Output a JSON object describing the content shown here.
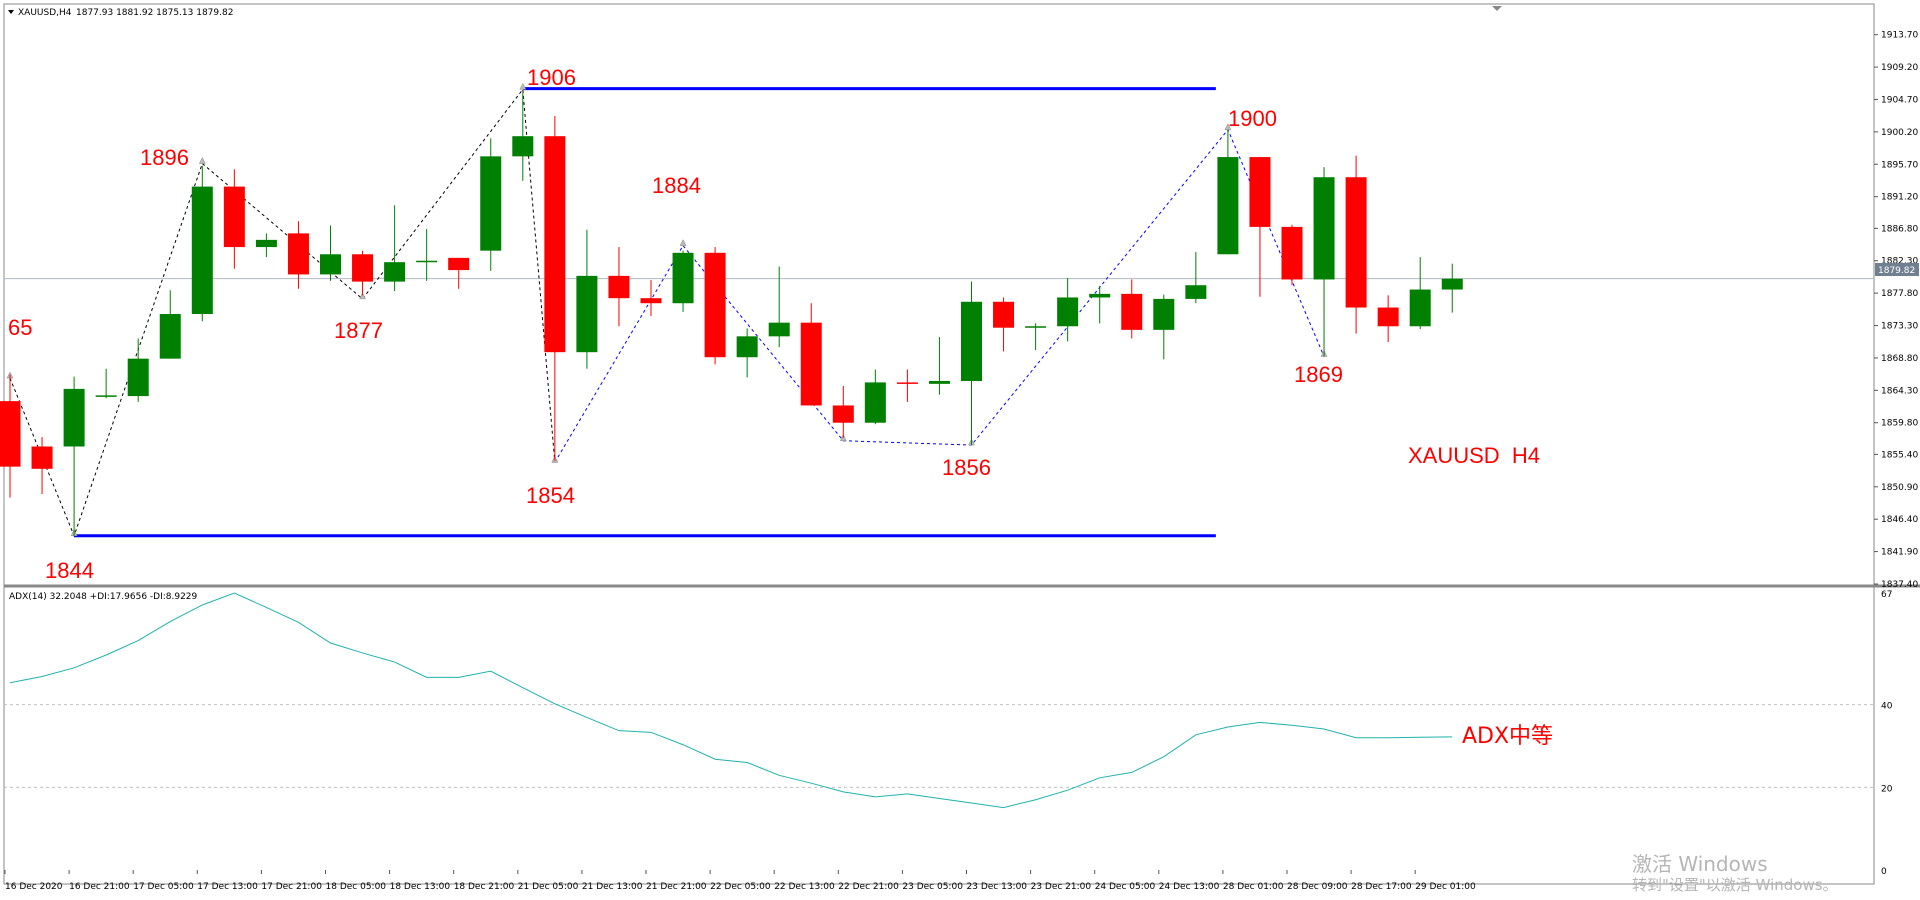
{
  "header": {
    "title": "XAUUSD,H4",
    "ohlc": "1877.93 1881.92 1875.13 1879.82"
  },
  "indicator": {
    "label": "ADX(14) 32.2048 +DI:17.9656 -DI:8.9229",
    "comment": "ADX中等",
    "axis_labels": [
      "67",
      "40",
      "20",
      "0"
    ]
  },
  "annotations": {
    "symbol_label": "XAUUSD  H4",
    "current_price": "1879.82"
  },
  "watermark": {
    "line1": "激活 Windows",
    "line2": "转到\"设置\"以激活 Windows。"
  },
  "colors": {
    "bull": "#008000",
    "bear": "#ff0000",
    "level_line": "#0000ff",
    "zigzag_red": "#000000",
    "zigzag_blue": "#0000ff",
    "adx_line": "#20b2aa",
    "price_label_text": "#ff0000"
  },
  "chart_data": {
    "type": "candlestick",
    "symbol": "XAUUSD",
    "timeframe": "H4",
    "price_range": [
      1837.4,
      1915.6
    ],
    "price_ticks": [
      "1913.70",
      "1909.20",
      "1904.70",
      "1900.20",
      "1895.70",
      "1891.20",
      "1886.80",
      "1882.30",
      "1877.80",
      "1873.30",
      "1868.80",
      "1864.30",
      "1859.80",
      "1855.40",
      "1850.90",
      "1846.40",
      "1841.90",
      "1837.40"
    ],
    "time_labels": [
      "16 Dec 2020",
      "16 Dec 21:00",
      "17 Dec 05:00",
      "17 Dec 13:00",
      "17 Dec 21:00",
      "18 Dec 05:00",
      "18 Dec 13:00",
      "18 Dec 21:00",
      "21 Dec 05:00",
      "21 Dec 13:00",
      "21 Dec 21:00",
      "22 Dec 05:00",
      "22 Dec 13:00",
      "22 Dec 21:00",
      "23 Dec 05:00",
      "23 Dec 13:00",
      "23 Dec 21:00",
      "24 Dec 05:00",
      "24 Dec 13:00",
      "28 Dec 01:00",
      "28 Dec 09:00",
      "28 Dec 17:00",
      "29 Dec 01:00"
    ],
    "candles": [
      {
        "o": 1862.8,
        "h": 1866.5,
        "l": 1849.4,
        "c": 1853.7
      },
      {
        "o": 1856.5,
        "h": 1857.8,
        "l": 1849.9,
        "c": 1853.4
      },
      {
        "o": 1856.5,
        "h": 1866.2,
        "l": 1844.1,
        "c": 1864.5
      },
      {
        "o": 1863.5,
        "h": 1867.3,
        "l": 1863.2,
        "c": 1863.6
      },
      {
        "o": 1863.5,
        "h": 1871.5,
        "l": 1862.7,
        "c": 1868.7
      },
      {
        "o": 1868.7,
        "h": 1878.2,
        "l": 1868.7,
        "c": 1874.9
      },
      {
        "o": 1874.9,
        "h": 1895.5,
        "l": 1873.9,
        "c": 1892.6
      },
      {
        "o": 1892.6,
        "h": 1895.0,
        "l": 1881.2,
        "c": 1884.2
      },
      {
        "o": 1884.2,
        "h": 1886.1,
        "l": 1882.8,
        "c": 1885.2
      },
      {
        "o": 1886.1,
        "h": 1887.8,
        "l": 1878.4,
        "c": 1880.4
      },
      {
        "o": 1880.4,
        "h": 1887.2,
        "l": 1879.5,
        "c": 1883.2
      },
      {
        "o": 1883.2,
        "h": 1883.7,
        "l": 1877.5,
        "c": 1879.4
      },
      {
        "o": 1879.4,
        "h": 1890.0,
        "l": 1878.1,
        "c": 1882.1
      },
      {
        "o": 1882.1,
        "h": 1886.7,
        "l": 1879.5,
        "c": 1882.3
      },
      {
        "o": 1882.7,
        "h": 1882.7,
        "l": 1878.4,
        "c": 1881.0
      },
      {
        "o": 1883.7,
        "h": 1899.3,
        "l": 1880.9,
        "c": 1896.8
      },
      {
        "o": 1896.8,
        "h": 1905.6,
        "l": 1893.4,
        "c": 1899.6
      },
      {
        "o": 1899.6,
        "h": 1902.4,
        "l": 1854.5,
        "c": 1869.6
      },
      {
        "o": 1869.6,
        "h": 1886.6,
        "l": 1867.3,
        "c": 1880.2
      },
      {
        "o": 1880.2,
        "h": 1884.2,
        "l": 1873.2,
        "c": 1877.1
      },
      {
        "o": 1877.1,
        "h": 1879.6,
        "l": 1874.6,
        "c": 1876.4
      },
      {
        "o": 1876.4,
        "h": 1883.7,
        "l": 1875.2,
        "c": 1883.4
      },
      {
        "o": 1883.4,
        "h": 1884.2,
        "l": 1867.9,
        "c": 1868.9
      },
      {
        "o": 1868.9,
        "h": 1872.9,
        "l": 1866.1,
        "c": 1871.8
      },
      {
        "o": 1871.8,
        "h": 1881.5,
        "l": 1870.3,
        "c": 1873.7
      },
      {
        "o": 1873.7,
        "h": 1876.4,
        "l": 1862.2,
        "c": 1862.2
      },
      {
        "o": 1862.2,
        "h": 1864.9,
        "l": 1857.7,
        "c": 1859.8
      },
      {
        "o": 1859.8,
        "h": 1867.2,
        "l": 1859.6,
        "c": 1865.4
      },
      {
        "o": 1865.4,
        "h": 1867.2,
        "l": 1862.7,
        "c": 1865.2
      },
      {
        "o": 1865.2,
        "h": 1871.7,
        "l": 1863.7,
        "c": 1865.6
      },
      {
        "o": 1865.6,
        "h": 1879.4,
        "l": 1856.7,
        "c": 1876.6
      },
      {
        "o": 1876.6,
        "h": 1877.2,
        "l": 1869.7,
        "c": 1873.0
      },
      {
        "o": 1873.0,
        "h": 1873.6,
        "l": 1869.9,
        "c": 1873.2
      },
      {
        "o": 1873.2,
        "h": 1879.9,
        "l": 1871.1,
        "c": 1877.2
      },
      {
        "o": 1877.2,
        "h": 1878.8,
        "l": 1873.6,
        "c": 1877.7
      },
      {
        "o": 1877.7,
        "h": 1879.7,
        "l": 1871.5,
        "c": 1872.7
      },
      {
        "o": 1872.7,
        "h": 1877.6,
        "l": 1868.6,
        "c": 1877.0
      },
      {
        "o": 1877.0,
        "h": 1883.5,
        "l": 1876.4,
        "c": 1878.9
      },
      {
        "o": 1883.2,
        "h": 1900.4,
        "l": 1883.2,
        "c": 1896.7
      },
      {
        "o": 1896.7,
        "h": 1896.7,
        "l": 1877.3,
        "c": 1887.0
      },
      {
        "o": 1887.0,
        "h": 1887.3,
        "l": 1878.9,
        "c": 1879.7
      },
      {
        "o": 1879.7,
        "h": 1895.3,
        "l": 1869.0,
        "c": 1893.9
      },
      {
        "o": 1893.9,
        "h": 1896.9,
        "l": 1872.2,
        "c": 1875.8
      },
      {
        "o": 1875.8,
        "h": 1877.5,
        "l": 1871.0,
        "c": 1873.2
      },
      {
        "o": 1873.2,
        "h": 1882.8,
        "l": 1872.8,
        "c": 1878.3
      },
      {
        "o": 1878.3,
        "h": 1881.9,
        "l": 1875.1,
        "c": 1879.8
      }
    ],
    "levels": [
      {
        "price": 1906.2,
        "from_candle": 16,
        "to_candle": 37
      },
      {
        "price": 1844.1,
        "from_candle": 2,
        "to_candle": 37
      }
    ],
    "zigzag": [
      {
        "style": "black",
        "points": [
          [
            0,
            1866.0
          ],
          [
            2,
            1844.1
          ],
          [
            6,
            1895.8
          ],
          [
            11,
            1877.0
          ],
          [
            16,
            1906.1
          ],
          [
            17,
            1854.3
          ]
        ]
      },
      {
        "style": "blue",
        "points": [
          [
            17,
            1854.3
          ],
          [
            21,
            1884.4
          ],
          [
            26,
            1857.3
          ],
          [
            30,
            1856.7
          ],
          [
            38,
            1900.5
          ],
          [
            41,
            1869.0
          ]
        ]
      }
    ],
    "price_labels": [
      "65",
      "1896",
      "1877",
      "1906",
      "1854",
      "1884",
      "1856",
      "1900",
      "1869",
      "1844"
    ],
    "adx": {
      "axis": [
        0,
        67
      ],
      "gridlines": [
        40,
        20
      ],
      "values": [
        45.3,
        46.8,
        48.9,
        52.0,
        55.5,
        60.1,
        64.1,
        67.0,
        63.5,
        59.9,
        54.9,
        52.5,
        50.3,
        46.6,
        46.6,
        48.1,
        44.1,
        40.2,
        36.9,
        33.7,
        33.3,
        30.3,
        26.8,
        26.0,
        22.9,
        21.0,
        18.9,
        17.7,
        18.4,
        17.3,
        16.2,
        15.1,
        17.0,
        19.3,
        22.3,
        23.6,
        27.4,
        32.7,
        34.6,
        35.7,
        35.0,
        34.1,
        32.0,
        32.0,
        32.1,
        32.2
      ]
    }
  }
}
